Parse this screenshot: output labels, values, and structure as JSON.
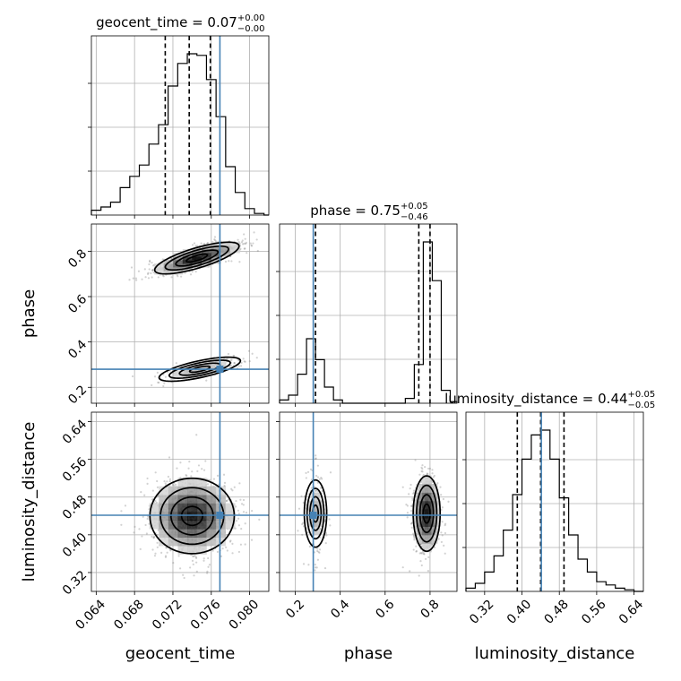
{
  "chart_data": {
    "type": "corner",
    "parameters": [
      {
        "name": "geocent_time",
        "axis_label": "geocent_time",
        "title": {
          "text": "geocent_time = 0.07",
          "sup": "+0.00",
          "sub": "−0.00"
        },
        "range": [
          0.0635,
          0.082
        ],
        "ticks": [
          0.064,
          0.068,
          0.072,
          0.076,
          0.08
        ],
        "tick_labels": [
          "0.064",
          "0.068",
          "0.072",
          "0.076",
          "0.080"
        ],
        "quantiles": [
          0.0712,
          0.0737,
          0.0759
        ],
        "truth": 0.0769,
        "histogram": {
          "edges": [
            0.0635,
            0.0645,
            0.0655,
            0.0665,
            0.0675,
            0.0685,
            0.0695,
            0.0705,
            0.0715,
            0.0725,
            0.0735,
            0.0745,
            0.0755,
            0.0765,
            0.0775,
            0.0785,
            0.0795,
            0.0805,
            0.0815,
            0.082
          ],
          "counts": [
            0.03,
            0.05,
            0.08,
            0.17,
            0.24,
            0.31,
            0.44,
            0.56,
            0.8,
            0.94,
            1.0,
            0.99,
            0.84,
            0.61,
            0.3,
            0.14,
            0.04,
            0.01,
            0.0
          ]
        }
      },
      {
        "name": "phase",
        "axis_label": "phase",
        "title": {
          "text": "phase = 0.75",
          "sup": "+0.05",
          "sub": "−0.46"
        },
        "range": [
          0.13,
          0.92
        ],
        "ticks": [
          0.2,
          0.4,
          0.6,
          0.8
        ],
        "tick_labels": [
          "0.2",
          "0.4",
          "0.6",
          "0.8"
        ],
        "quantiles": [
          0.29,
          0.75,
          0.8
        ],
        "truth": 0.28,
        "histogram": {
          "edges": [
            0.13,
            0.17,
            0.21,
            0.25,
            0.29,
            0.33,
            0.37,
            0.41,
            0.45,
            0.49,
            0.53,
            0.57,
            0.61,
            0.65,
            0.69,
            0.73,
            0.77,
            0.81,
            0.85,
            0.89,
            0.92
          ],
          "counts": [
            0.02,
            0.05,
            0.18,
            0.4,
            0.27,
            0.1,
            0.02,
            0.0,
            0.0,
            0.0,
            0.0,
            0.0,
            0.0,
            0.0,
            0.03,
            0.24,
            1.0,
            0.76,
            0.08,
            0.01
          ]
        }
      },
      {
        "name": "luminosity_distance",
        "axis_label": "luminosity_distance",
        "title": {
          "text": "luminosity_distance = 0.44",
          "sup": "+0.05",
          "sub": "−0.05"
        },
        "range": [
          0.28,
          0.66
        ],
        "ticks": [
          0.32,
          0.4,
          0.48,
          0.56,
          0.64
        ],
        "tick_labels": [
          "0.32",
          "0.40",
          "0.48",
          "0.56",
          "0.64"
        ],
        "quantiles": [
          0.39,
          0.44,
          0.49
        ],
        "truth": 0.4415,
        "histogram": {
          "edges": [
            0.28,
            0.3,
            0.32,
            0.34,
            0.36,
            0.38,
            0.4,
            0.42,
            0.44,
            0.46,
            0.48,
            0.5,
            0.52,
            0.54,
            0.56,
            0.58,
            0.6,
            0.62,
            0.64,
            0.66
          ],
          "counts": [
            0.02,
            0.05,
            0.12,
            0.22,
            0.38,
            0.6,
            0.82,
            0.97,
            1.0,
            0.82,
            0.58,
            0.35,
            0.2,
            0.12,
            0.06,
            0.04,
            0.02,
            0.01,
            0.0
          ]
        }
      }
    ],
    "pairs": [
      {
        "x": "geocent_time",
        "y": "phase",
        "modes": [
          {
            "x_mean": 0.0745,
            "y_mean": 0.77,
            "x_sd": 0.0022,
            "y_sd": 0.035,
            "rho": 0.75,
            "weight": 0.82
          },
          {
            "x_mean": 0.0748,
            "y_mean": 0.28,
            "x_sd": 0.0024,
            "y_sd": 0.03,
            "rho": 0.7,
            "weight": 0.18
          }
        ],
        "truth": [
          0.0769,
          0.28
        ]
      },
      {
        "x": "geocent_time",
        "y": "luminosity_distance",
        "modes": [
          {
            "x_mean": 0.074,
            "y_mean": 0.44,
            "x_sd": 0.0022,
            "y_sd": 0.04,
            "rho": 0.0,
            "weight": 1.0
          }
        ],
        "truth": [
          0.0769,
          0.4415
        ]
      },
      {
        "x": "phase",
        "y": "luminosity_distance",
        "modes": [
          {
            "x_mean": 0.785,
            "y_mean": 0.445,
            "x_sd": 0.03,
            "y_sd": 0.04,
            "rho": 0.0,
            "weight": 0.8
          },
          {
            "x_mean": 0.29,
            "y_mean": 0.445,
            "x_sd": 0.028,
            "y_sd": 0.04,
            "rho": 0.0,
            "weight": 0.2
          }
        ],
        "truth": [
          0.28,
          0.4415
        ]
      }
    ],
    "contour_levels_sigma": [
      0.5,
      1.0,
      1.5,
      2.0
    ],
    "colors": {
      "truth": "#4682b4",
      "hist": "#000000",
      "grid": "#b0b0b0"
    },
    "grid": true
  }
}
